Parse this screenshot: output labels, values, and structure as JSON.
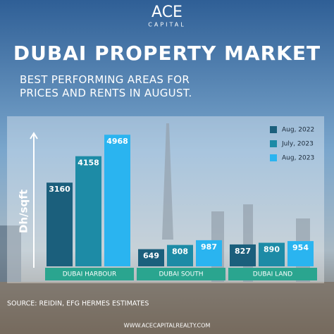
{
  "header": {
    "logo": "ACE",
    "logo_sub": "CAPITAL"
  },
  "chart_data": {
    "type": "bar",
    "title": "DUBAI PROPERTY MARKET",
    "subtitle": "BEST PERFORMING AREAS FOR PRICES AND RENTS IN AUGUST.",
    "y_label": "Dh/sqft",
    "categories": [
      "DUBAI HARBOUR",
      "DUBAI SOUTH",
      "DUBAI LAND"
    ],
    "series": [
      {
        "name": "Aug, 2022",
        "color": "#1b5f7c",
        "values": [
          3160,
          649,
          827
        ]
      },
      {
        "name": "July, 2023",
        "color": "#1d8ba6",
        "values": [
          4158,
          808,
          890
        ]
      },
      {
        "name": "Aug, 2023",
        "color": "#2ab4f0",
        "values": [
          4968,
          987,
          954
        ]
      }
    ],
    "ylim": [
      0,
      5000
    ],
    "legend": "upper right",
    "source": "SOURCE: REIDIN, EFG HERMES ESTIMATES"
  },
  "footer": {
    "url": "WWW.ACECAPITALREALTY.COM"
  }
}
